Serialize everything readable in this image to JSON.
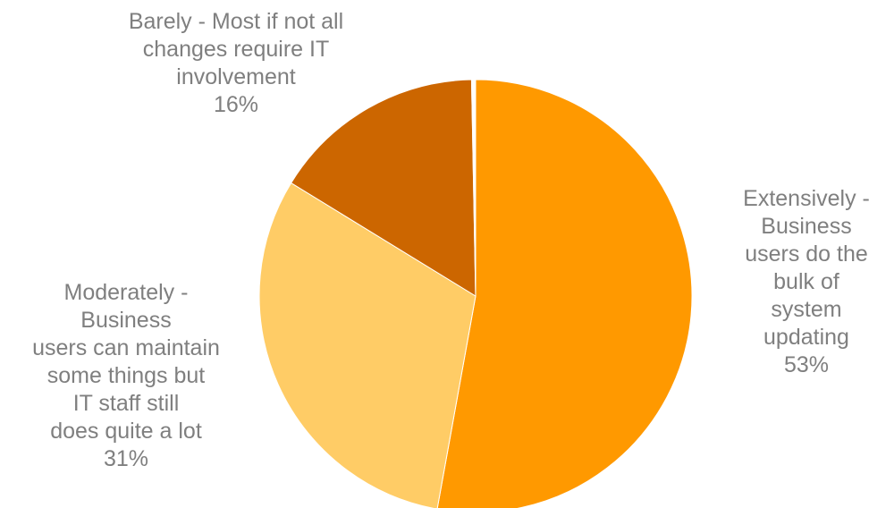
{
  "chart_data": {
    "type": "pie",
    "title": "",
    "colors": [
      "#FF9900",
      "#FFCC66",
      "#CC6600",
      "#FFFFFF"
    ],
    "slices": [
      {
        "label_lines": [
          "Extensively -",
          "Business",
          "users do the",
          "bulk of",
          "system",
          "updating"
        ],
        "value": 53,
        "value_label": "53%"
      },
      {
        "label_lines": [
          "Moderately -",
          "Business",
          "users can maintain",
          "some things  but",
          "IT staff still",
          "does quite a lot"
        ],
        "value": 31,
        "value_label": "31%"
      },
      {
        "label_lines": [
          "Barely - Most if not all",
          "changes require IT",
          "involvement"
        ],
        "value": 16,
        "value_label": "16%"
      },
      {
        "label_lines": [],
        "value": 0.3,
        "value_label": ""
      }
    ]
  }
}
